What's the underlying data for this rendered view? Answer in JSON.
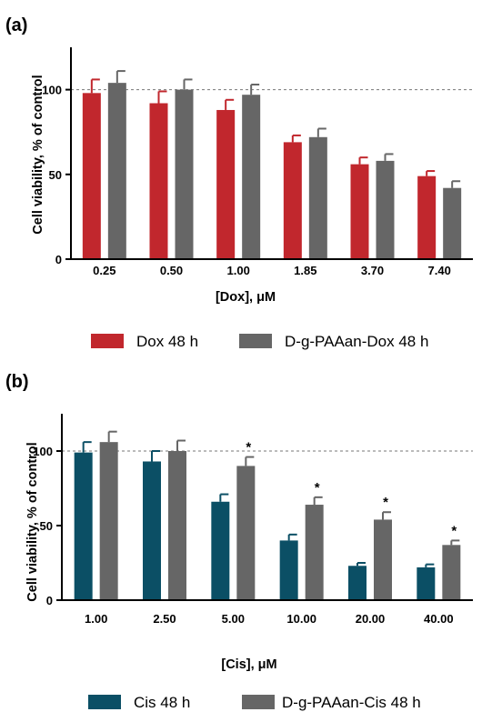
{
  "chart_data": [
    {
      "panel_label": "(a)",
      "type": "bar",
      "xlabel": "[Dox], μM",
      "ylabel": "Cell viability, % of control",
      "ylim": [
        0,
        125
      ],
      "yticks": [
        0,
        50,
        100
      ],
      "reference_line": 100,
      "categories": [
        "0.25",
        "0.50",
        "1.00",
        "1.85",
        "3.70",
        "7.40"
      ],
      "series": [
        {
          "name": "Dox 48 h",
          "color": "#c1272d",
          "values": [
            98,
            92,
            88,
            69,
            56,
            49
          ],
          "errors": [
            8,
            7,
            6,
            4,
            4,
            3
          ]
        },
        {
          "name": "D-g-PAAan-Dox 48 h",
          "color": "#666666",
          "values": [
            104,
            100,
            97,
            72,
            58,
            42
          ],
          "errors": [
            7,
            6,
            6,
            5,
            4,
            4
          ]
        }
      ],
      "significance": [
        false,
        false,
        false,
        false,
        false,
        false
      ]
    },
    {
      "panel_label": "(b)",
      "type": "bar",
      "xlabel": "[Cis], μM",
      "ylabel": "Cell viability, % of control",
      "ylim": [
        0,
        125
      ],
      "yticks": [
        0,
        50,
        100
      ],
      "reference_line": 100,
      "categories": [
        "1.00",
        "2.50",
        "5.00",
        "10.00",
        "20.00",
        "40.00"
      ],
      "series": [
        {
          "name": "Cis 48 h",
          "color": "#0b4f65",
          "values": [
            99,
            93,
            66,
            40,
            23,
            22
          ],
          "errors": [
            7,
            7,
            5,
            4,
            2,
            2
          ]
        },
        {
          "name": "D-g-PAAan-Cis 48 h",
          "color": "#666666",
          "values": [
            106,
            100,
            90,
            64,
            54,
            37
          ],
          "errors": [
            7,
            7,
            6,
            5,
            5,
            3
          ]
        }
      ],
      "significance": [
        false,
        false,
        true,
        true,
        true,
        true
      ],
      "significance_mark": "*"
    }
  ]
}
